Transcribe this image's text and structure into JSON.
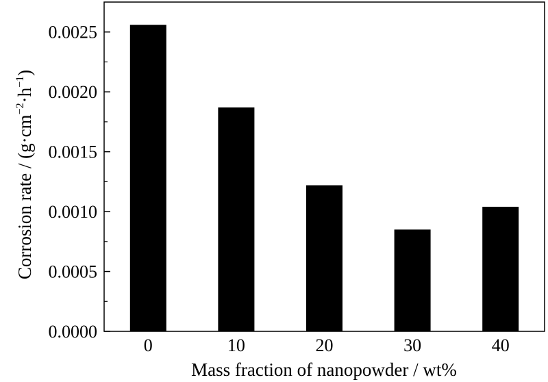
{
  "chart_data": {
    "type": "bar",
    "categories": [
      "0",
      "10",
      "20",
      "30",
      "40"
    ],
    "values": [
      0.00256,
      0.00187,
      0.00122,
      0.00085,
      0.00104
    ],
    "ylim": [
      0,
      0.00275
    ],
    "yticks": [
      "0.0000",
      "0.0005",
      "0.0010",
      "0.0015",
      "0.0020",
      "0.0025"
    ],
    "ytick_values": [
      0,
      0.0005,
      0.001,
      0.0015,
      0.002,
      0.0025
    ],
    "xlabel": "Mass fraction of nanopowder / wt%",
    "ylabel": {
      "prefix": "Corrosion rate / (g·cm",
      "sup1": "−2",
      "middle": "·h",
      "sup2": "−1",
      "suffix": ")"
    },
    "grid": false,
    "bar_color": "#000000"
  }
}
